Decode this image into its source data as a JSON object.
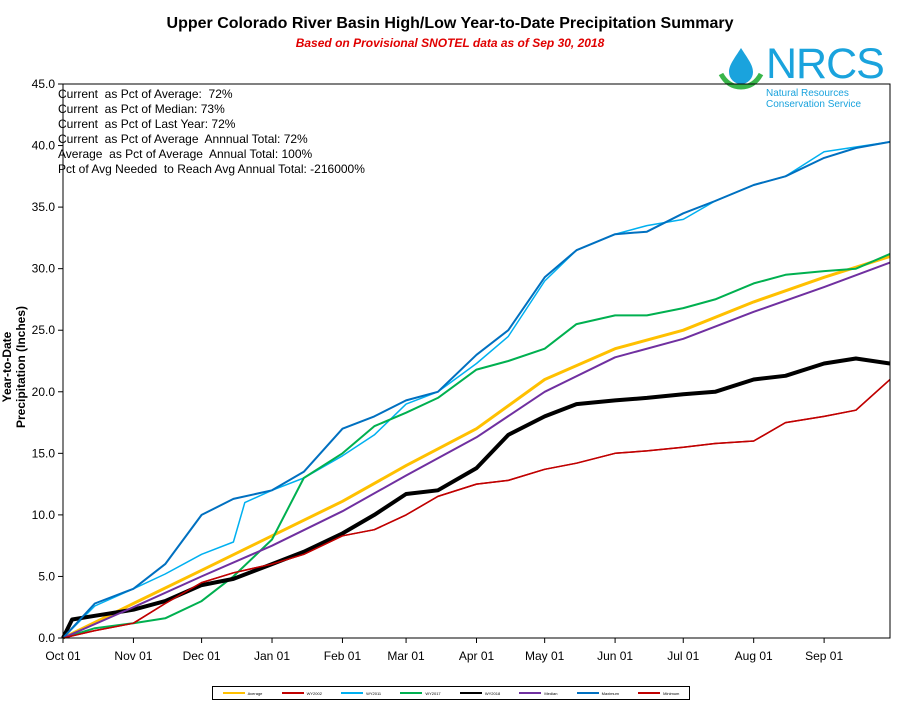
{
  "header": {
    "title": "Upper Colorado River Basin High/Low Year-to-Date Precipitation Summary",
    "subtitle": "Based on Provisional SNOTEL data as of Sep 30, 2018"
  },
  "logo": {
    "name": "NRCS",
    "line1": "Natural Resources",
    "line2": "Conservation Service",
    "color": "#1aa3dd",
    "icon": "water-drop-icon"
  },
  "stats": [
    "Current  as Pct of Average:  72%",
    "Current  as Pct of Median: 73%",
    "Current  as Pct of Last Year: 72%",
    "Current  as Pct of Average  Annnual Total: 72%",
    "Average  as Pct of Average  Annual Total: 100%",
    "Pct of Avg Needed  to Reach Avg Annual Total: -216000%"
  ],
  "chart_data": {
    "type": "line",
    "title": "Upper Colorado River Basin High/Low Year-to-Date Precipitation Summary",
    "subtitle": "Based on Provisional SNOTEL data as of Sep 30, 2018",
    "ylabel": "Year-to-Date Precipitation (Inches)",
    "xlabel": "",
    "ylim": [
      0,
      45
    ],
    "yticks": [
      "0.0",
      "5.0",
      "10.0",
      "15.0",
      "20.0",
      "25.0",
      "30.0",
      "35.0",
      "40.0",
      "45.0"
    ],
    "xticks": [
      "Oct 01",
      "Nov 01",
      "Dec 01",
      "Jan 01",
      "Feb 01",
      "Mar 01",
      "Apr 01",
      "May 01",
      "Jun 01",
      "Jul 01",
      "Aug 01",
      "Sep 01"
    ],
    "grid": false,
    "legend_placement": "bottom",
    "series": [
      {
        "name": "Average",
        "color": "#ffc000",
        "width": 3,
        "x": [
          "Oct 01",
          "Nov 01",
          "Dec 01",
          "Jan 01",
          "Feb 01",
          "Mar 01",
          "Apr 01",
          "May 01",
          "Jun 01",
          "Jul 01",
          "Aug 01",
          "Sep 01",
          "Sep 30"
        ],
        "values": [
          0.0,
          2.8,
          5.5,
          8.3,
          11.1,
          14.0,
          17.0,
          21.0,
          23.5,
          25.0,
          27.3,
          29.3,
          31.0
        ]
      },
      {
        "name": "WY2002",
        "color": "#c00000",
        "width": 1.5,
        "x": [
          "Oct 01",
          "Oct 15",
          "Nov 01",
          "Nov 15",
          "Dec 01",
          "Dec 15",
          "Jan 01",
          "Jan 15",
          "Feb 01",
          "Feb 15",
          "Mar 01",
          "Mar 15",
          "Apr 01",
          "Apr 15",
          "May 01",
          "May 15",
          "Jun 01",
          "Jun 15",
          "Jul 01",
          "Jul 15",
          "Aug 01",
          "Aug 15",
          "Sep 01",
          "Sep 15",
          "Sep 30"
        ],
        "values": [
          0.0,
          0.6,
          1.2,
          2.8,
          4.5,
          5.3,
          6.0,
          6.8,
          8.3,
          8.8,
          10.0,
          11.5,
          12.5,
          12.8,
          13.7,
          14.2,
          15.0,
          15.2,
          15.5,
          15.8,
          16.0,
          17.5,
          18.0,
          18.5,
          21.0
        ]
      },
      {
        "name": "WY2011",
        "color": "#00b0f0",
        "width": 1.5,
        "x": [
          "Oct 01",
          "Oct 15",
          "Nov 01",
          "Nov 15",
          "Dec 01",
          "Dec 15",
          "Dec 20",
          "Jan 01",
          "Jan 15",
          "Feb 01",
          "Feb 15",
          "Mar 01",
          "Mar 15",
          "Apr 01",
          "Apr 15",
          "May 01",
          "May 15",
          "Jun 01",
          "Jun 15",
          "Jul 01",
          "Jul 15",
          "Aug 01",
          "Aug 15",
          "Sep 01",
          "Sep 30"
        ],
        "values": [
          0.0,
          2.6,
          4.0,
          5.2,
          6.8,
          7.8,
          11.0,
          12.0,
          13.0,
          14.8,
          16.5,
          19.0,
          20.0,
          22.3,
          24.5,
          29.0,
          31.5,
          32.8,
          33.5,
          34.0,
          35.5,
          36.8,
          37.5,
          39.5,
          40.3
        ]
      },
      {
        "name": "WY2017",
        "color": "#00b050",
        "width": 2,
        "x": [
          "Oct 01",
          "Oct 15",
          "Nov 01",
          "Nov 15",
          "Dec 01",
          "Dec 15",
          "Jan 01",
          "Jan 15",
          "Feb 01",
          "Feb 15",
          "Mar 01",
          "Mar 15",
          "Apr 01",
          "Apr 15",
          "May 01",
          "May 15",
          "Jun 01",
          "Jun 15",
          "Jul 01",
          "Jul 15",
          "Aug 01",
          "Aug 15",
          "Sep 01",
          "Sep 15",
          "Sep 30"
        ],
        "values": [
          0.0,
          0.8,
          1.2,
          1.6,
          3.0,
          5.0,
          8.0,
          13.0,
          15.0,
          17.2,
          18.3,
          19.5,
          21.8,
          22.5,
          23.5,
          25.5,
          26.2,
          26.2,
          26.8,
          27.5,
          28.8,
          29.5,
          29.8,
          30.0,
          31.2
        ]
      },
      {
        "name": "WY2018",
        "color": "#000000",
        "width": 4,
        "x": [
          "Oct 01",
          "Oct 05",
          "Oct 15",
          "Nov 01",
          "Nov 15",
          "Dec 01",
          "Dec 15",
          "Jan 01",
          "Jan 15",
          "Feb 01",
          "Feb 15",
          "Mar 01",
          "Mar 15",
          "Apr 01",
          "Apr 15",
          "May 01",
          "May 15",
          "Jun 01",
          "Jun 15",
          "Jul 01",
          "Jul 15",
          "Aug 01",
          "Aug 15",
          "Sep 01",
          "Sep 15",
          "Sep 30"
        ],
        "values": [
          0.0,
          1.5,
          1.8,
          2.3,
          3.0,
          4.3,
          4.8,
          6.0,
          7.0,
          8.5,
          10.0,
          11.7,
          12.0,
          13.8,
          16.5,
          18.0,
          19.0,
          19.3,
          19.5,
          19.8,
          20.0,
          21.0,
          21.3,
          22.3,
          22.7,
          22.3
        ]
      },
      {
        "name": "Median",
        "color": "#7030a0",
        "width": 2,
        "x": [
          "Oct 01",
          "Nov 01",
          "Dec 01",
          "Jan 01",
          "Feb 01",
          "Mar 01",
          "Apr 01",
          "May 01",
          "Jun 01",
          "Jul 01",
          "Aug 01",
          "Sep 01",
          "Sep 30"
        ],
        "values": [
          0.0,
          2.5,
          5.0,
          7.5,
          10.3,
          13.2,
          16.3,
          20.0,
          22.8,
          24.3,
          26.5,
          28.5,
          30.5
        ]
      },
      {
        "name": "Maximum",
        "color": "#0070c0",
        "width": 2,
        "x": [
          "Oct 01",
          "Oct 15",
          "Nov 01",
          "Nov 15",
          "Dec 01",
          "Dec 15",
          "Jan 01",
          "Jan 15",
          "Feb 01",
          "Feb 15",
          "Mar 01",
          "Mar 15",
          "Apr 01",
          "Apr 15",
          "May 01",
          "May 15",
          "Jun 01",
          "Jun 15",
          "Jul 01",
          "Jul 15",
          "Aug 01",
          "Aug 15",
          "Sep 01",
          "Sep 15",
          "Sep 30"
        ],
        "values": [
          0.0,
          2.8,
          4.0,
          6.0,
          10.0,
          11.3,
          12.0,
          13.5,
          17.0,
          18.0,
          19.3,
          20.0,
          23.0,
          25.0,
          29.3,
          31.5,
          32.8,
          33.0,
          34.5,
          35.5,
          36.8,
          37.5,
          39.0,
          39.8,
          40.3
        ]
      },
      {
        "name": "Minimum",
        "color": "#c00000",
        "width": 1.5,
        "x": [
          "Oct 01",
          "Oct 15",
          "Nov 01",
          "Nov 15",
          "Dec 01",
          "Dec 15",
          "Jan 01",
          "Jan 15",
          "Feb 01",
          "Feb 15",
          "Mar 01",
          "Mar 15",
          "Apr 01",
          "Apr 15",
          "May 01",
          "May 15",
          "Jun 01",
          "Jun 15",
          "Jul 01",
          "Jul 15",
          "Aug 01",
          "Aug 15",
          "Sep 01",
          "Sep 15",
          "Sep 30"
        ],
        "values": [
          0.0,
          0.6,
          1.2,
          2.8,
          4.5,
          5.3,
          6.0,
          6.8,
          8.3,
          8.8,
          10.0,
          11.5,
          12.5,
          12.8,
          13.7,
          14.2,
          15.0,
          15.2,
          15.5,
          15.8,
          16.0,
          17.5,
          18.0,
          18.5,
          21.0
        ]
      }
    ]
  }
}
